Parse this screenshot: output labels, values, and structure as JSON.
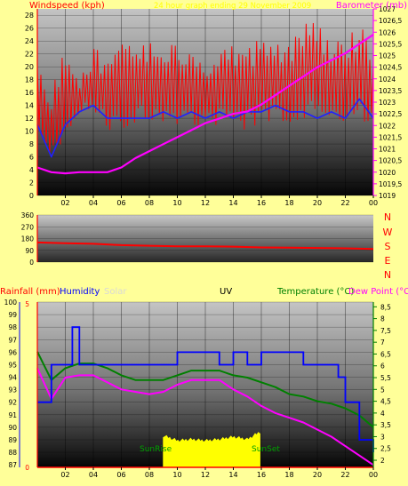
{
  "colors": {
    "background": "#ffff99",
    "wind": "#ff0000",
    "wind_avg": "#2020ff",
    "barometer": "#ff00ff",
    "direction": "#ff0000",
    "humidity": "#0000ff",
    "solar": "#ffff00",
    "temperature": "#008000",
    "dewpoint": "#ff00ff",
    "title_text": "#ffff00"
  },
  "top_panel": {
    "left_label": "Windspeed (kph)",
    "title": "24 hour graph ending   29 November 2009",
    "right_label": "Barometer (mb)"
  },
  "mid_panel": {
    "right_letters": [
      "N",
      "W",
      "S",
      "E",
      "N"
    ]
  },
  "bottom_panel": {
    "rainfall_label": "Rainfall (mm)",
    "humidity_label": "Humidity",
    "solar_label": "Solar",
    "uv_label": "UV",
    "temperature_label": "Temperature (°C)",
    "dewpoint_label": "Dew Point (°C)",
    "sunrise_label": "SunRise",
    "sunset_label": "SunSet"
  },
  "chart_data": [
    {
      "type": "line",
      "x_ticks": [
        "02",
        "04",
        "06",
        "08",
        "10",
        "12",
        "14",
        "16",
        "18",
        "20",
        "22",
        "00"
      ],
      "left_axis": {
        "ticks": [
          0,
          2,
          4,
          6,
          8,
          10,
          12,
          14,
          16,
          18,
          20,
          22,
          24,
          26,
          28
        ],
        "ylim": [
          0,
          29
        ]
      },
      "right_axis": {
        "ticks": [
          "1019",
          "1019,5",
          "1020",
          "1020,5",
          "1021",
          "1021,5",
          "1022",
          "1022,5",
          "1023",
          "1023,5",
          "1024",
          "1024,5",
          "1025",
          "1025,5",
          "1026",
          "1026,5",
          "1027"
        ],
        "ylim": [
          1019,
          1027
        ]
      },
      "series": [
        {
          "name": "Windspeed (kph)",
          "axis": "left",
          "x": [
            0,
            1,
            2,
            3,
            4,
            5,
            6,
            7,
            8,
            9,
            10,
            11,
            12,
            13,
            14,
            15,
            16,
            17,
            18,
            19,
            20,
            21,
            22,
            23,
            24
          ],
          "gust_max": [
            20,
            16,
            24,
            20,
            24,
            22,
            24,
            24,
            24,
            24,
            24,
            24,
            22,
            24,
            24,
            24,
            24,
            24,
            24,
            27,
            27,
            24,
            24,
            27,
            22
          ],
          "gust_min": [
            8,
            6,
            9,
            11,
            12,
            10,
            10,
            11,
            12,
            10,
            11,
            11,
            10,
            11,
            10,
            10,
            11,
            11,
            11,
            12,
            12,
            11,
            11,
            12,
            10
          ]
        },
        {
          "name": "Average wind",
          "axis": "left",
          "x": [
            0,
            1,
            2,
            3,
            4,
            5,
            6,
            7,
            8,
            9,
            10,
            11,
            12,
            13,
            14,
            15,
            16,
            17,
            18,
            19,
            20,
            21,
            22,
            23,
            24
          ],
          "y": [
            11,
            6,
            11,
            13,
            14,
            12,
            12,
            12,
            12,
            13,
            12,
            13,
            12,
            13,
            12,
            13,
            13,
            14,
            13,
            13,
            12,
            13,
            12,
            15,
            12
          ]
        },
        {
          "name": "Barometer (mb)",
          "axis": "right",
          "x": [
            0,
            1,
            2,
            3,
            4,
            5,
            6,
            7,
            8,
            9,
            10,
            11,
            12,
            13,
            14,
            15,
            16,
            17,
            18,
            19,
            20,
            21,
            22,
            23,
            24
          ],
          "y": [
            1020.2,
            1020.0,
            1019.95,
            1020.0,
            1020.0,
            1020.0,
            1020.2,
            1020.6,
            1020.9,
            1021.2,
            1021.5,
            1021.8,
            1022.1,
            1022.3,
            1022.5,
            1022.6,
            1022.9,
            1023.3,
            1023.7,
            1024.1,
            1024.5,
            1024.8,
            1025.1,
            1025.5,
            1025.9
          ]
        }
      ]
    },
    {
      "type": "line",
      "x_ticks": [
        "02",
        "04",
        "06",
        "08",
        "10",
        "12",
        "14",
        "16",
        "18",
        "20",
        "22",
        "00"
      ],
      "left_axis": {
        "ticks": [
          0,
          90,
          180,
          270,
          360
        ],
        "ylim": [
          0,
          360
        ]
      },
      "series": [
        {
          "name": "Wind direction",
          "x": [
            0,
            2,
            4,
            6,
            8,
            10,
            12,
            14,
            16,
            18,
            20,
            22,
            24
          ],
          "y": [
            150,
            145,
            140,
            130,
            125,
            120,
            120,
            118,
            112,
            110,
            108,
            105,
            100
          ]
        }
      ]
    },
    {
      "type": "line",
      "x_ticks": [
        "02",
        "04",
        "06",
        "08",
        "10",
        "12",
        "14",
        "16",
        "18",
        "20",
        "22",
        "00"
      ],
      "humidity_axis": {
        "ticks": [
          87,
          88,
          89,
          90,
          91,
          92,
          93,
          94,
          95,
          96,
          97,
          98,
          99,
          100
        ],
        "ylim": [
          86.8,
          100
        ]
      },
      "rain_axis": {
        "ticks": [
          0,
          5
        ],
        "ylim": [
          0,
          5
        ]
      },
      "temp_axis": {
        "ticks": [
          "2",
          "2,5",
          "3",
          "3,5",
          "4",
          "4,5",
          "5",
          "5,5",
          "6",
          "6,5",
          "7",
          "7,5",
          "8",
          "8,5"
        ],
        "ylim": [
          1.7,
          8.7
        ]
      },
      "series": [
        {
          "name": "Humidity",
          "axis": "humidity",
          "x": [
            0,
            1,
            1.5,
            2.5,
            3,
            4,
            5,
            6,
            7,
            8,
            9,
            10,
            11,
            12,
            13,
            14,
            15,
            16,
            17,
            18,
            19,
            20,
            21,
            21.5,
            22,
            23,
            24
          ],
          "y": [
            92,
            95,
            95,
            98,
            95,
            95,
            95,
            95,
            95,
            95,
            95,
            96,
            96,
            96,
            95,
            96,
            95,
            96,
            96,
            96,
            95,
            95,
            95,
            94,
            92,
            89,
            88
          ]
        },
        {
          "name": "Temperature (°C)",
          "axis": "temp",
          "x": [
            0,
            1,
            2,
            3,
            4,
            5,
            6,
            7,
            8,
            9,
            10,
            11,
            12,
            13,
            14,
            15,
            16,
            17,
            18,
            19,
            20,
            21,
            22,
            23,
            24
          ],
          "y": [
            6.6,
            5.4,
            5.9,
            6.1,
            6.1,
            5.9,
            5.6,
            5.4,
            5.4,
            5.4,
            5.6,
            5.8,
            5.8,
            5.8,
            5.6,
            5.5,
            5.3,
            5.1,
            4.8,
            4.7,
            4.5,
            4.4,
            4.2,
            3.9,
            3.4
          ]
        },
        {
          "name": "Dew Point (°C)",
          "axis": "temp",
          "x": [
            0,
            1,
            2,
            3,
            4,
            5,
            6,
            7,
            8,
            9,
            10,
            11,
            12,
            13,
            14,
            15,
            16,
            17,
            18,
            19,
            20,
            21,
            22,
            23,
            24
          ],
          "y": [
            5.9,
            4.6,
            5.5,
            5.6,
            5.6,
            5.3,
            5.0,
            4.9,
            4.8,
            4.9,
            5.2,
            5.4,
            5.4,
            5.4,
            5.0,
            4.7,
            4.3,
            4.0,
            3.8,
            3.6,
            3.3,
            3.0,
            2.6,
            2.2,
            1.8
          ]
        },
        {
          "name": "Solar",
          "axis": "humidity",
          "x": [
            9,
            10,
            11,
            12,
            13,
            14,
            15,
            15.9
          ],
          "y": [
            89.3,
            88.9,
            89.0,
            88.9,
            89.0,
            89.2,
            89.0,
            89.6
          ]
        }
      ]
    }
  ]
}
